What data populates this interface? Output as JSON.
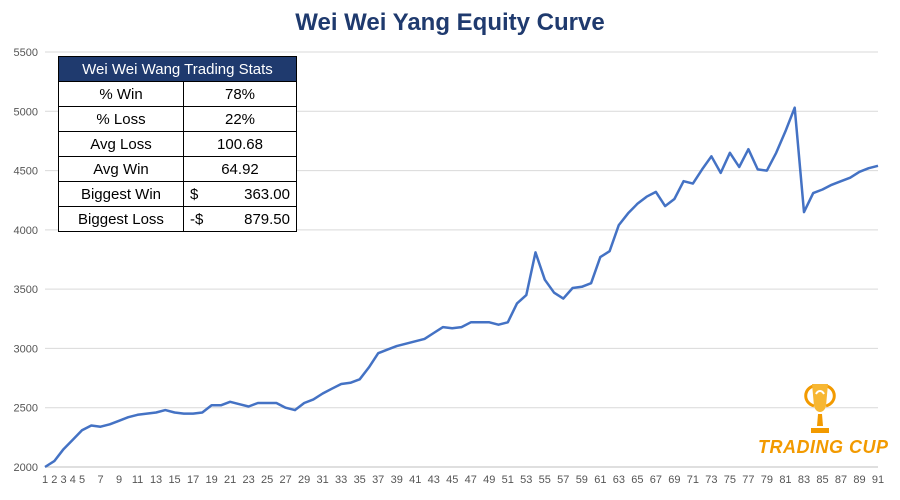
{
  "chart_data": {
    "type": "line",
    "title": "Wei Wei Yang Equity Curve",
    "xlabel": "",
    "ylabel": "",
    "ylim": [
      2000,
      5500
    ],
    "yticks": [
      2000,
      2500,
      3000,
      3500,
      4000,
      4500,
      5000,
      5500
    ],
    "xticks": [
      1,
      2,
      3,
      4,
      5,
      7,
      9,
      11,
      13,
      15,
      17,
      19,
      21,
      23,
      25,
      27,
      29,
      31,
      33,
      35,
      37,
      39,
      41,
      43,
      45,
      47,
      49,
      51,
      53,
      55,
      57,
      59,
      61,
      63,
      65,
      67,
      69,
      71,
      73,
      75,
      77,
      79,
      81,
      83,
      85,
      87,
      89,
      91
    ],
    "grid": true,
    "legend": "none",
    "series": [
      {
        "color": "#4472c4",
        "x": [
          1,
          2,
          3,
          4,
          5,
          6,
          7,
          8,
          9,
          10,
          11,
          12,
          13,
          14,
          15,
          16,
          17,
          18,
          19,
          20,
          21,
          22,
          23,
          24,
          25,
          26,
          27,
          28,
          29,
          30,
          31,
          32,
          33,
          34,
          35,
          36,
          37,
          38,
          39,
          40,
          41,
          42,
          43,
          44,
          45,
          46,
          47,
          48,
          49,
          50,
          51,
          52,
          53,
          54,
          55,
          56,
          57,
          58,
          59,
          60,
          61,
          62,
          63,
          64,
          65,
          66,
          67,
          68,
          69,
          70,
          71,
          72,
          73,
          74,
          75,
          76,
          77,
          78,
          79,
          80,
          81,
          82,
          83,
          84,
          85,
          86,
          87,
          88,
          89,
          90,
          91
        ],
        "y": [
          2000,
          2050,
          2150,
          2230,
          2310,
          2350,
          2340,
          2360,
          2390,
          2420,
          2440,
          2450,
          2460,
          2480,
          2460,
          2450,
          2450,
          2460,
          2520,
          2520,
          2550,
          2530,
          2510,
          2540,
          2540,
          2540,
          2500,
          2480,
          2540,
          2570,
          2620,
          2660,
          2700,
          2710,
          2740,
          2840,
          2960,
          2990,
          3020,
          3040,
          3060,
          3080,
          3130,
          3180,
          3170,
          3180,
          3220,
          3220,
          3220,
          3200,
          3220,
          3380,
          3450,
          3810,
          3580,
          3470,
          3420,
          3510,
          3520,
          3550,
          3770,
          3820,
          4040,
          4140,
          4220,
          4280,
          4320,
          4200,
          4260,
          4410,
          4390,
          4510,
          4620,
          4480,
          4650,
          4530,
          4680,
          4510,
          4500,
          4650,
          4830,
          5030,
          4150,
          4310,
          4340,
          4380,
          4410,
          4440,
          4490,
          4520,
          4540
        ]
      }
    ]
  },
  "stats_table": {
    "title": "Wei Wei Wang Trading Stats",
    "rows": [
      {
        "label": "% Win",
        "value": "78%"
      },
      {
        "label": "% Loss",
        "value": "22%"
      },
      {
        "label": "Avg Loss",
        "value": "100.68"
      },
      {
        "label": "Avg Win",
        "value": "64.92"
      }
    ],
    "biggest_win": {
      "label": "Biggest Win",
      "currency": "$",
      "amount": "363.00"
    },
    "biggest_loss": {
      "label": "Biggest Loss",
      "currency": "-$",
      "amount": "879.50"
    }
  },
  "logo": {
    "text": "TRADING CUP",
    "color": "#f29a00"
  }
}
